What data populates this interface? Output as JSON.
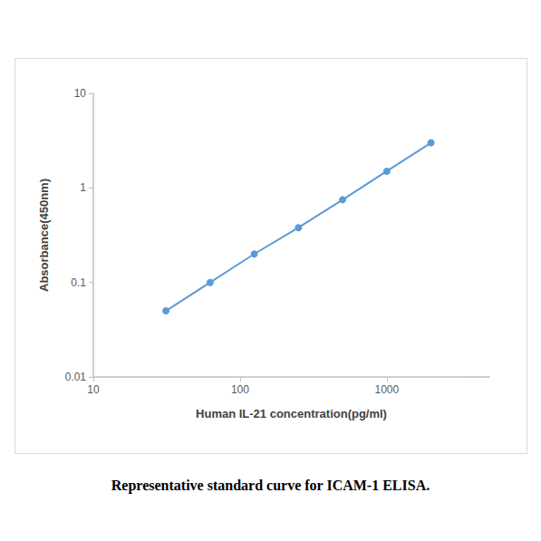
{
  "chart_data": {
    "type": "line",
    "title": "Representative standard curve for ICAM-1 ELISA.",
    "x_label": "Human IL-21 concentration(pg/ml)",
    "y_label": "Absorbance(450nm)",
    "x": [
      31.25,
      62.5,
      125,
      250,
      500,
      1000,
      2000
    ],
    "values": [
      0.05,
      0.1,
      0.2,
      0.38,
      0.75,
      1.5,
      3.0
    ],
    "color": "#5b9bd5",
    "marker": "circle",
    "log": true,
    "grid": false,
    "xlim": [
      10,
      5000
    ],
    "xticks": [
      10,
      100,
      1000
    ],
    "ylim": [
      0.01,
      10
    ],
    "yticks": [
      0.01,
      0.1,
      1,
      10
    ]
  }
}
